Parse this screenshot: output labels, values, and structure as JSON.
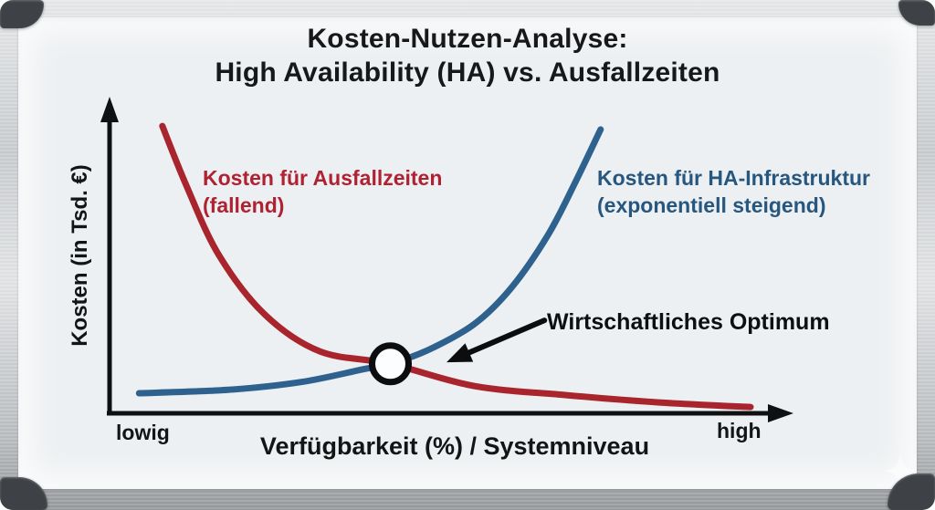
{
  "whiteboard": {
    "title_line1": "Kosten-Nutzen-Analyse:",
    "title_line2": "High Availability (HA) vs. Ausfallzeiten"
  },
  "chart_data": {
    "type": "line",
    "title": "Kosten-Nutzen-Analyse: High Availability (HA) vs. Ausfallzeiten",
    "xlabel": "Verfügbarkeit (%) / Systemniveau",
    "ylabel": "Kosten (in Tsd. €)",
    "x_left_label": "lowig",
    "x_right_label": "high",
    "xlim": [
      0,
      100
    ],
    "ylim": [
      0,
      100
    ],
    "grid": false,
    "legend": "inline-curve-labels",
    "axes_style": "qualitative-arrow-axes",
    "series": [
      {
        "name": "Kosten für Ausfallzeiten (fallend)",
        "label_line1": "Kosten für Ausfallzeiten",
        "label_line2": "(fallend)",
        "color": "#a8252e",
        "label_color": "#b02231",
        "points": [
          [
            7.7,
            91.8
          ],
          [
            11.3,
            72.3
          ],
          [
            16,
            50.4
          ],
          [
            22.7,
            31.5
          ],
          [
            30.7,
            19.8
          ],
          [
            41,
            15.8
          ],
          [
            53.3,
            8.7
          ],
          [
            66.7,
            5.8
          ],
          [
            80,
            3.5
          ],
          [
            93.6,
            2.0
          ]
        ]
      },
      {
        "name": "Kosten für HA-Infrastruktur (exponentiell steigend)",
        "label_line1": "Kosten für HA-Infrastruktur",
        "label_line2": "(exponentiell steigend)",
        "color": "#2e618e",
        "label_color": "#27577f",
        "points": [
          [
            4.3,
            6.4
          ],
          [
            17.3,
            7.5
          ],
          [
            28,
            10.0
          ],
          [
            37.3,
            14.2
          ],
          [
            41,
            15.8
          ],
          [
            46.7,
            20.4
          ],
          [
            53.3,
            28.6
          ],
          [
            58.7,
            40.2
          ],
          [
            64,
            56.9
          ],
          [
            68,
            73.8
          ],
          [
            71.7,
            90.7
          ]
        ]
      }
    ],
    "annotation": {
      "label": "Wirtschaftliches Optimum",
      "marker": "open-circle",
      "point": [
        41,
        15.8
      ],
      "arrow_from": [
        63.5,
        29.7
      ],
      "arrow_to": [
        49.2,
        16.3
      ]
    },
    "colors": {
      "axis": "#0f1011",
      "annotation": "#0c0d0e",
      "marker_fill": "#fcfdfe"
    }
  },
  "decor": {
    "board_surface_color": "#edf0f2",
    "frame_color": "#c9cccf",
    "corner_cap_color": "#3e4246"
  }
}
